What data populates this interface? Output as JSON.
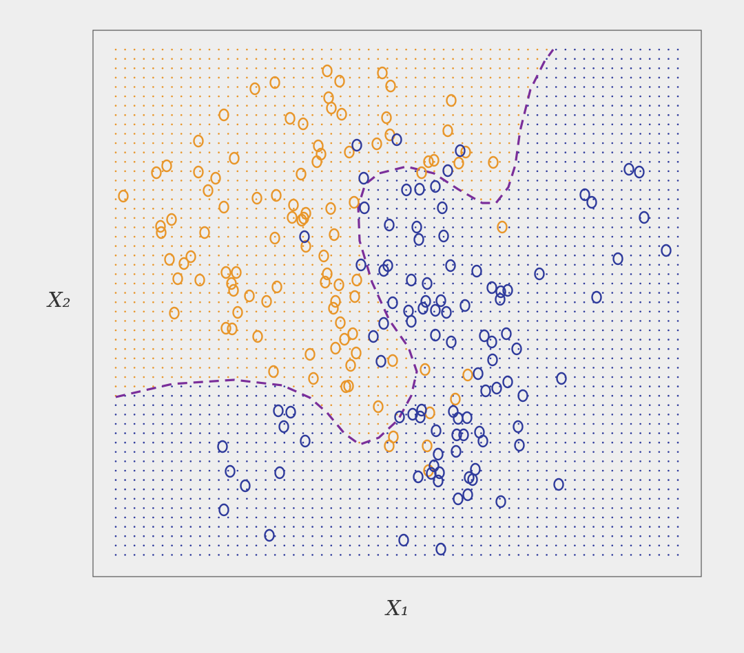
{
  "chart_data": {
    "type": "scatter",
    "xlabel": "X₁",
    "ylabel": "X₂",
    "xlim": [
      0,
      883
    ],
    "ylim": [
      0,
      794
    ],
    "background_grid": true,
    "series": [
      {
        "color": "#e8962a",
        "x": [
          340,
          420,
          358,
          264,
          235,
          432,
          342,
          520,
          346,
          361,
          190,
          286,
          305,
          426,
          515,
          431,
          153,
          412,
          327,
          372,
          331,
          205,
          325,
          487,
          495,
          541,
          531,
          581,
          107,
          92,
          153,
          178,
          302,
          477,
          167,
          44,
          238,
          266,
          291,
          190,
          345,
          379,
          309,
          114,
          98,
          99,
          162,
          289,
          303,
          306,
          264,
          350,
          594,
          309,
          111,
          132,
          142,
          335,
          340,
          193,
          208,
          123,
          155,
          337,
          357,
          383,
          201,
          204,
          267,
          227,
          252,
          352,
          380,
          349,
          118,
          210,
          359,
          193,
          202,
          239,
          365,
          377,
          352,
          382,
          315,
          374,
          435,
          482,
          262,
          320,
          544,
          367,
          371,
          526,
          414,
          489,
          436,
          430,
          485,
          487
        ],
        "values": [
          735,
          732,
          720,
          718,
          709,
          713,
          696,
          692,
          681,
          672,
          671,
          666,
          658,
          667,
          648,
          642,
          633,
          629,
          626,
          617,
          614,
          608,
          603,
          603,
          605,
          617,
          601,
          602,
          597,
          587,
          588,
          579,
          585,
          587,
          561,
          553,
          550,
          554,
          540,
          537,
          535,
          544,
          528,
          519,
          509,
          500,
          500,
          522,
          518,
          521,
          492,
          497,
          508,
          480,
          461,
          455,
          465,
          466,
          440,
          442,
          442,
          433,
          431,
          428,
          424,
          431,
          426,
          416,
          421,
          408,
          400,
          400,
          407,
          390,
          383,
          384,
          369,
          361,
          360,
          349,
          345,
          353,
          332,
          325,
          323,
          307,
          314,
          301,
          298,
          288,
          293,
          276,
          277,
          258,
          247,
          238,
          203,
          190,
          190,
          154
        ]
      },
      {
        "color": "#2f3b9c",
        "x": [
          383,
          441,
          533,
          515,
          778,
          793,
          393,
          455,
          474,
          497,
          714,
          724,
          394,
          507,
          800,
          430,
          470,
          307,
          473,
          509,
          832,
          762,
          389,
          422,
          428,
          519,
          557,
          648,
          462,
          485,
          579,
          592,
          602,
          591,
          731,
          435,
          483,
          505,
          540,
          458,
          479,
          497,
          513,
          422,
          462,
          407,
          497,
          568,
          600,
          579,
          520,
          615,
          418,
          580,
          559,
          602,
          680,
          570,
          586,
          624,
          269,
          287,
          277,
          445,
          464,
          477,
          475,
          523,
          530,
          543,
          617,
          498,
          528,
          538,
          561,
          308,
          566,
          619,
          188,
          527,
          501,
          199,
          271,
          495,
          555,
          491,
          503,
          472,
          501,
          546,
          551,
          221,
          676,
          544,
          530,
          592,
          190,
          256,
          451,
          505
        ],
        "values": [
          627,
          635,
          619,
          590,
          592,
          588,
          579,
          562,
          563,
          567,
          555,
          544,
          536,
          536,
          522,
          511,
          508,
          494,
          490,
          495,
          474,
          462,
          453,
          445,
          452,
          452,
          444,
          440,
          431,
          426,
          420,
          414,
          416,
          403,
          406,
          398,
          400,
          401,
          394,
          386,
          390,
          387,
          384,
          368,
          371,
          349,
          351,
          350,
          353,
          341,
          341,
          331,
          313,
          315,
          295,
          283,
          288,
          270,
          274,
          263,
          241,
          239,
          218,
          232,
          236,
          242,
          232,
          240,
          230,
          231,
          218,
          212,
          206,
          206,
          210,
          197,
          197,
          191,
          189,
          182,
          178,
          153,
          151,
          161,
          156,
          150,
          151,
          145,
          139,
          144,
          141,
          132,
          134,
          119,
          113,
          109,
          97,
          60,
          53,
          40
        ]
      }
    ],
    "boundary": {
      "color": "#7a2e9a",
      "x": [
        33,
        115,
        205,
        275,
        315,
        340,
        365,
        387,
        415,
        443,
        462,
        470,
        458,
        430,
        405,
        387,
        385,
        395,
        415,
        455,
        495,
        530,
        565,
        585,
        603,
        613,
        620,
        635,
        655,
        668
      ],
      "y": [
        261,
        280,
        286,
        278,
        260,
        238,
        208,
        192,
        202,
        228,
        263,
        298,
        333,
        373,
        428,
        488,
        538,
        570,
        586,
        596,
        586,
        563,
        543,
        543,
        566,
        598,
        648,
        708,
        748,
        766
      ]
    }
  }
}
